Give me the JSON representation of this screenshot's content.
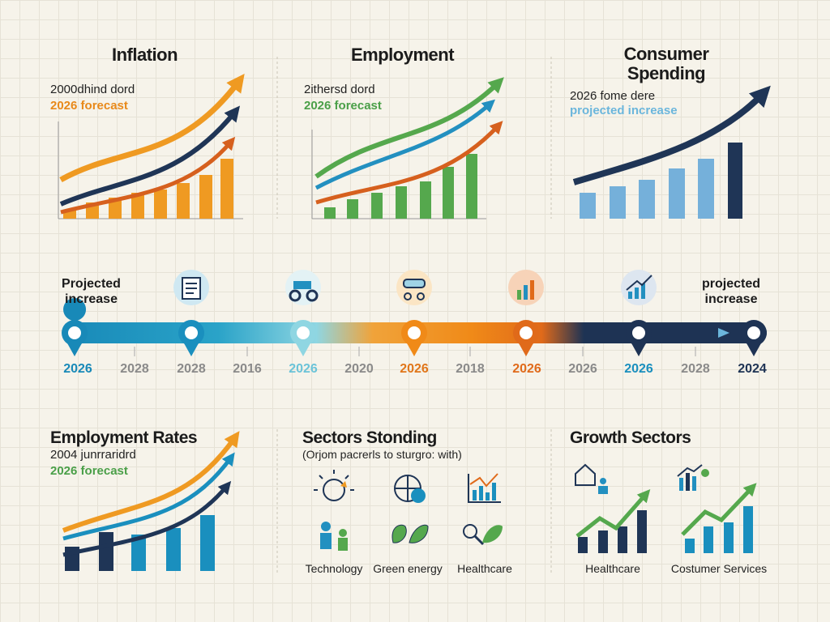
{
  "panels": [
    {
      "title": "Inflation",
      "lines": [
        "2000dhind dord",
        "2026 forecast"
      ]
    },
    {
      "title": "Employment",
      "lines": [
        "2ithersd dord",
        "2026 forecast"
      ]
    },
    {
      "title": "Consumer Spending",
      "lines": [
        "2026 fome dere",
        "projected increase"
      ]
    }
  ],
  "timeline": {
    "left_label": "Projected increase",
    "right_label": "projected increase",
    "years": [
      "2026",
      "2028",
      "2028",
      "2016",
      "2026",
      "2020",
      "2026",
      "2018",
      "2026",
      "2026",
      "2026",
      "2028",
      "2024"
    ]
  },
  "bottom": [
    {
      "title": "Employment Rates",
      "lines": [
        "2004 junrraridrd",
        "2026 forecast"
      ]
    },
    {
      "title": "Sectors Stonding",
      "subtitle": "(Orjom pacrerls to sturgro: with)",
      "items": [
        "Technology",
        "Green energy",
        "Healthcare"
      ]
    },
    {
      "title": "Growth Sectors",
      "items": [
        "Healthcare",
        "Costumer Services"
      ]
    }
  ]
}
